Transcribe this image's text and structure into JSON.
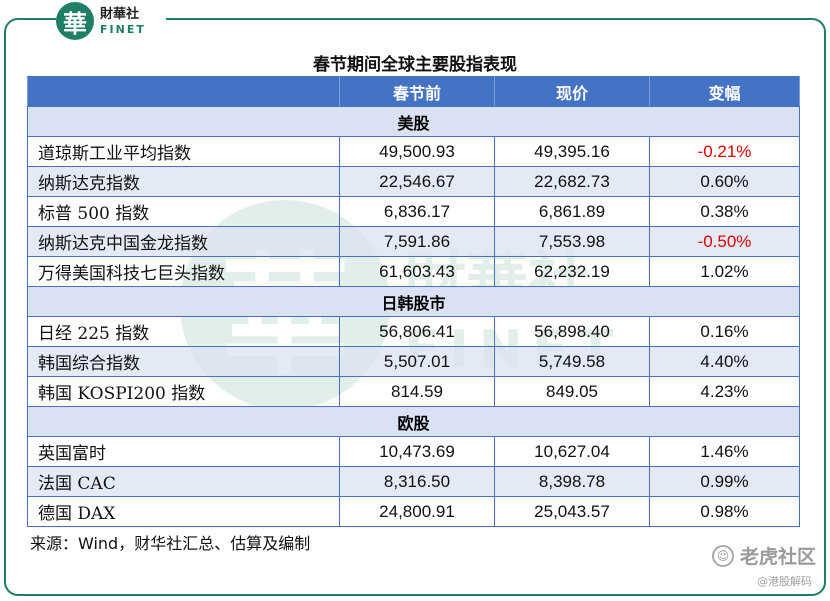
{
  "logo": {
    "mark": "華",
    "cn": "財華社",
    "en": "FINET"
  },
  "watermark": {
    "mark": "華",
    "cn": "財華社",
    "en": "FINET"
  },
  "title": "春节期间全球主要股指表现",
  "table": {
    "headers": [
      "",
      "春节前",
      "现价",
      "变幅"
    ],
    "sections": [
      {
        "name": "美股",
        "rows": [
          {
            "name": "道琼斯工业平均指数",
            "before": "49,500.93",
            "current": "49,395.16",
            "change": "-0.21%",
            "negative": true
          },
          {
            "name": "纳斯达克指数",
            "before": "22,546.67",
            "current": "22,682.73",
            "change": "0.60%",
            "negative": false
          },
          {
            "name": "标普 500 指数",
            "before": "6,836.17",
            "current": "6,861.89",
            "change": "0.38%",
            "negative": false
          },
          {
            "name": "纳斯达克中国金龙指数",
            "before": "7,591.86",
            "current": "7,553.98",
            "change": "-0.50%",
            "negative": true
          },
          {
            "name": "万得美国科技七巨头指数",
            "before": "61,603.43",
            "current": "62,232.19",
            "change": "1.02%",
            "negative": false
          }
        ]
      },
      {
        "name": "日韩股市",
        "rows": [
          {
            "name": "日经 225 指数",
            "before": "56,806.41",
            "current": "56,898.40",
            "change": "0.16%",
            "negative": false
          },
          {
            "name": "韩国综合指数",
            "before": "5,507.01",
            "current": "5,749.58",
            "change": "4.40%",
            "negative": false
          },
          {
            "name": "韩国 KOSPI200 指数",
            "before": "814.59",
            "current": "849.05",
            "change": "4.23%",
            "negative": false
          }
        ]
      },
      {
        "name": "欧股",
        "rows": [
          {
            "name": "英国富时",
            "before": "10,473.69",
            "current": "10,627.04",
            "change": "1.46%",
            "negative": false
          },
          {
            "name": "法国 CAC",
            "before": "8,316.50",
            "current": "8,398.78",
            "change": "0.99%",
            "negative": false
          },
          {
            "name": "德国 DAX",
            "before": "24,800.91",
            "current": "25,043.57",
            "change": "0.98%",
            "negative": false
          }
        ]
      }
    ]
  },
  "source": "来源：Wind，财华社汇总、估算及编制",
  "footer": {
    "brand": "老虎社区",
    "handle": "@港股解码"
  },
  "colors": {
    "header_bg": "#4472c4",
    "section_bg": "#d9e1f2",
    "negative": "#e00000",
    "brand": "#1f7f66"
  }
}
